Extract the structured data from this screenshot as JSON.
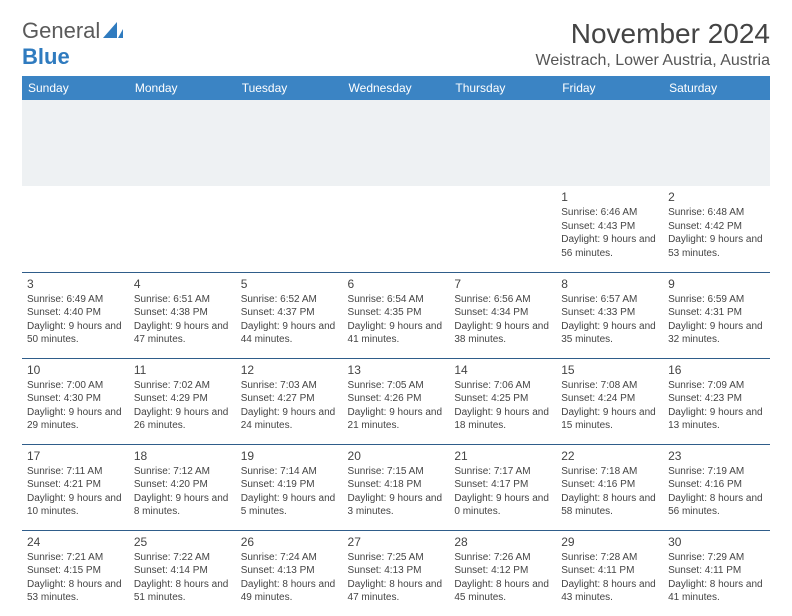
{
  "logo": {
    "text1": "General",
    "text2": "Blue"
  },
  "title": "November 2024",
  "location": "Weistrach, Lower Austria, Austria",
  "colors": {
    "header_bg": "#3b84c4",
    "header_fg": "#ffffff",
    "spacer_bg": "#eef1f3",
    "border": "#2f5d8a",
    "logo_gray": "#5a5a5a",
    "logo_blue": "#2f7bbf"
  },
  "day_headers": [
    "Sunday",
    "Monday",
    "Tuesday",
    "Wednesday",
    "Thursday",
    "Friday",
    "Saturday"
  ],
  "weeks": [
    [
      null,
      null,
      null,
      null,
      null,
      {
        "n": "1",
        "sr": "Sunrise: 6:46 AM",
        "ss": "Sunset: 4:43 PM",
        "dl": "Daylight: 9 hours and 56 minutes."
      },
      {
        "n": "2",
        "sr": "Sunrise: 6:48 AM",
        "ss": "Sunset: 4:42 PM",
        "dl": "Daylight: 9 hours and 53 minutes."
      }
    ],
    [
      {
        "n": "3",
        "sr": "Sunrise: 6:49 AM",
        "ss": "Sunset: 4:40 PM",
        "dl": "Daylight: 9 hours and 50 minutes."
      },
      {
        "n": "4",
        "sr": "Sunrise: 6:51 AM",
        "ss": "Sunset: 4:38 PM",
        "dl": "Daylight: 9 hours and 47 minutes."
      },
      {
        "n": "5",
        "sr": "Sunrise: 6:52 AM",
        "ss": "Sunset: 4:37 PM",
        "dl": "Daylight: 9 hours and 44 minutes."
      },
      {
        "n": "6",
        "sr": "Sunrise: 6:54 AM",
        "ss": "Sunset: 4:35 PM",
        "dl": "Daylight: 9 hours and 41 minutes."
      },
      {
        "n": "7",
        "sr": "Sunrise: 6:56 AM",
        "ss": "Sunset: 4:34 PM",
        "dl": "Daylight: 9 hours and 38 minutes."
      },
      {
        "n": "8",
        "sr": "Sunrise: 6:57 AM",
        "ss": "Sunset: 4:33 PM",
        "dl": "Daylight: 9 hours and 35 minutes."
      },
      {
        "n": "9",
        "sr": "Sunrise: 6:59 AM",
        "ss": "Sunset: 4:31 PM",
        "dl": "Daylight: 9 hours and 32 minutes."
      }
    ],
    [
      {
        "n": "10",
        "sr": "Sunrise: 7:00 AM",
        "ss": "Sunset: 4:30 PM",
        "dl": "Daylight: 9 hours and 29 minutes."
      },
      {
        "n": "11",
        "sr": "Sunrise: 7:02 AM",
        "ss": "Sunset: 4:29 PM",
        "dl": "Daylight: 9 hours and 26 minutes."
      },
      {
        "n": "12",
        "sr": "Sunrise: 7:03 AM",
        "ss": "Sunset: 4:27 PM",
        "dl": "Daylight: 9 hours and 24 minutes."
      },
      {
        "n": "13",
        "sr": "Sunrise: 7:05 AM",
        "ss": "Sunset: 4:26 PM",
        "dl": "Daylight: 9 hours and 21 minutes."
      },
      {
        "n": "14",
        "sr": "Sunrise: 7:06 AM",
        "ss": "Sunset: 4:25 PM",
        "dl": "Daylight: 9 hours and 18 minutes."
      },
      {
        "n": "15",
        "sr": "Sunrise: 7:08 AM",
        "ss": "Sunset: 4:24 PM",
        "dl": "Daylight: 9 hours and 15 minutes."
      },
      {
        "n": "16",
        "sr": "Sunrise: 7:09 AM",
        "ss": "Sunset: 4:23 PM",
        "dl": "Daylight: 9 hours and 13 minutes."
      }
    ],
    [
      {
        "n": "17",
        "sr": "Sunrise: 7:11 AM",
        "ss": "Sunset: 4:21 PM",
        "dl": "Daylight: 9 hours and 10 minutes."
      },
      {
        "n": "18",
        "sr": "Sunrise: 7:12 AM",
        "ss": "Sunset: 4:20 PM",
        "dl": "Daylight: 9 hours and 8 minutes."
      },
      {
        "n": "19",
        "sr": "Sunrise: 7:14 AM",
        "ss": "Sunset: 4:19 PM",
        "dl": "Daylight: 9 hours and 5 minutes."
      },
      {
        "n": "20",
        "sr": "Sunrise: 7:15 AM",
        "ss": "Sunset: 4:18 PM",
        "dl": "Daylight: 9 hours and 3 minutes."
      },
      {
        "n": "21",
        "sr": "Sunrise: 7:17 AM",
        "ss": "Sunset: 4:17 PM",
        "dl": "Daylight: 9 hours and 0 minutes."
      },
      {
        "n": "22",
        "sr": "Sunrise: 7:18 AM",
        "ss": "Sunset: 4:16 PM",
        "dl": "Daylight: 8 hours and 58 minutes."
      },
      {
        "n": "23",
        "sr": "Sunrise: 7:19 AM",
        "ss": "Sunset: 4:16 PM",
        "dl": "Daylight: 8 hours and 56 minutes."
      }
    ],
    [
      {
        "n": "24",
        "sr": "Sunrise: 7:21 AM",
        "ss": "Sunset: 4:15 PM",
        "dl": "Daylight: 8 hours and 53 minutes."
      },
      {
        "n": "25",
        "sr": "Sunrise: 7:22 AM",
        "ss": "Sunset: 4:14 PM",
        "dl": "Daylight: 8 hours and 51 minutes."
      },
      {
        "n": "26",
        "sr": "Sunrise: 7:24 AM",
        "ss": "Sunset: 4:13 PM",
        "dl": "Daylight: 8 hours and 49 minutes."
      },
      {
        "n": "27",
        "sr": "Sunrise: 7:25 AM",
        "ss": "Sunset: 4:13 PM",
        "dl": "Daylight: 8 hours and 47 minutes."
      },
      {
        "n": "28",
        "sr": "Sunrise: 7:26 AM",
        "ss": "Sunset: 4:12 PM",
        "dl": "Daylight: 8 hours and 45 minutes."
      },
      {
        "n": "29",
        "sr": "Sunrise: 7:28 AM",
        "ss": "Sunset: 4:11 PM",
        "dl": "Daylight: 8 hours and 43 minutes."
      },
      {
        "n": "30",
        "sr": "Sunrise: 7:29 AM",
        "ss": "Sunset: 4:11 PM",
        "dl": "Daylight: 8 hours and 41 minutes."
      }
    ]
  ]
}
